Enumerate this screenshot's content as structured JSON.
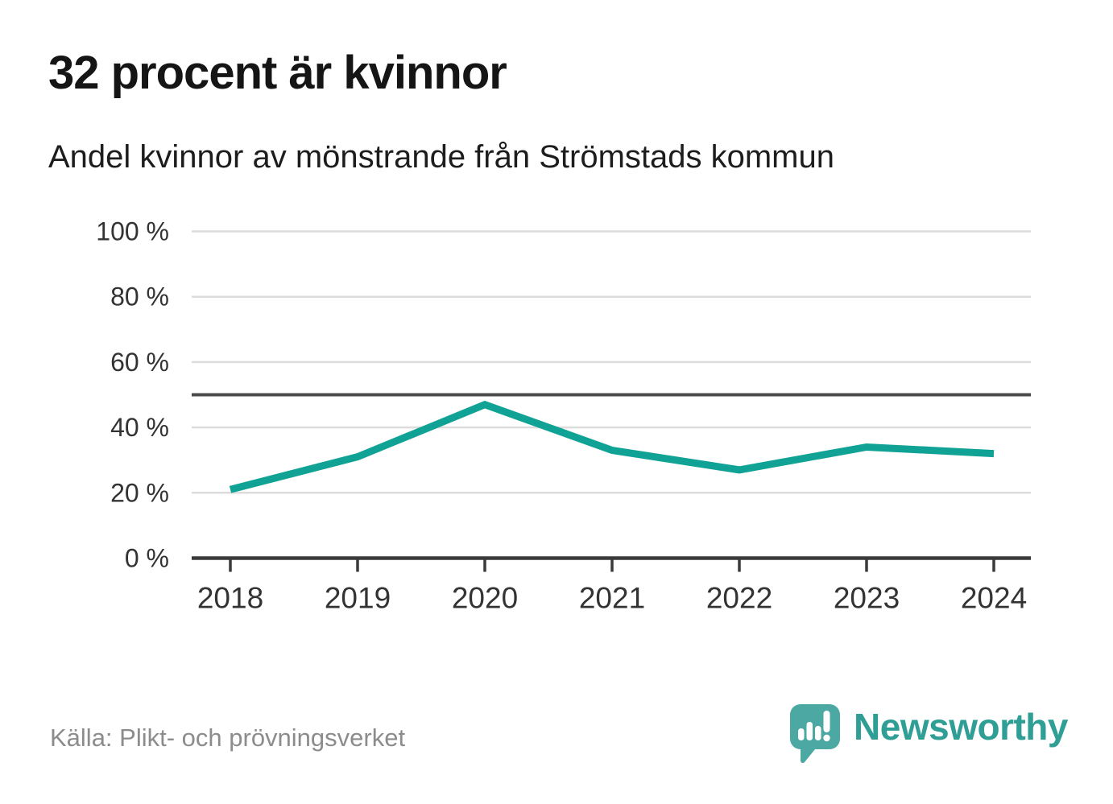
{
  "header": {
    "title": "32 procent är kvinnor",
    "subtitle": "Andel kvinnor av mönstrande från Strömstads kommun"
  },
  "chart_data": {
    "type": "line",
    "title": "32 procent är kvinnor",
    "subtitle": "Andel kvinnor av mönstrande från Strömstads kommun",
    "x": [
      2018,
      2019,
      2020,
      2021,
      2022,
      2023,
      2024
    ],
    "series": [
      {
        "name": "Andel kvinnor av mönstrande",
        "values": [
          21,
          31,
          47,
          33,
          27,
          34,
          32
        ]
      }
    ],
    "ylim": [
      0,
      100
    ],
    "y_ticks": [
      0,
      20,
      40,
      60,
      80,
      100
    ],
    "y_tick_suffix": " %",
    "reference_line": 50,
    "grid": true,
    "legend": "none",
    "line_color": "#10a295",
    "grid_color": "#dcdcdc",
    "axis_color": "#3a3a3a",
    "reference_color": "#4a4a4a",
    "label_color": "#333333"
  },
  "footer": {
    "source": "Källa: Plikt- och prövningsverket",
    "brand": "Newsworthy",
    "logo_icon": "newsworthy-speech-bubble-chart-icon",
    "brand_color": "#2f9e95",
    "logo_color": "#4ba8a3"
  }
}
